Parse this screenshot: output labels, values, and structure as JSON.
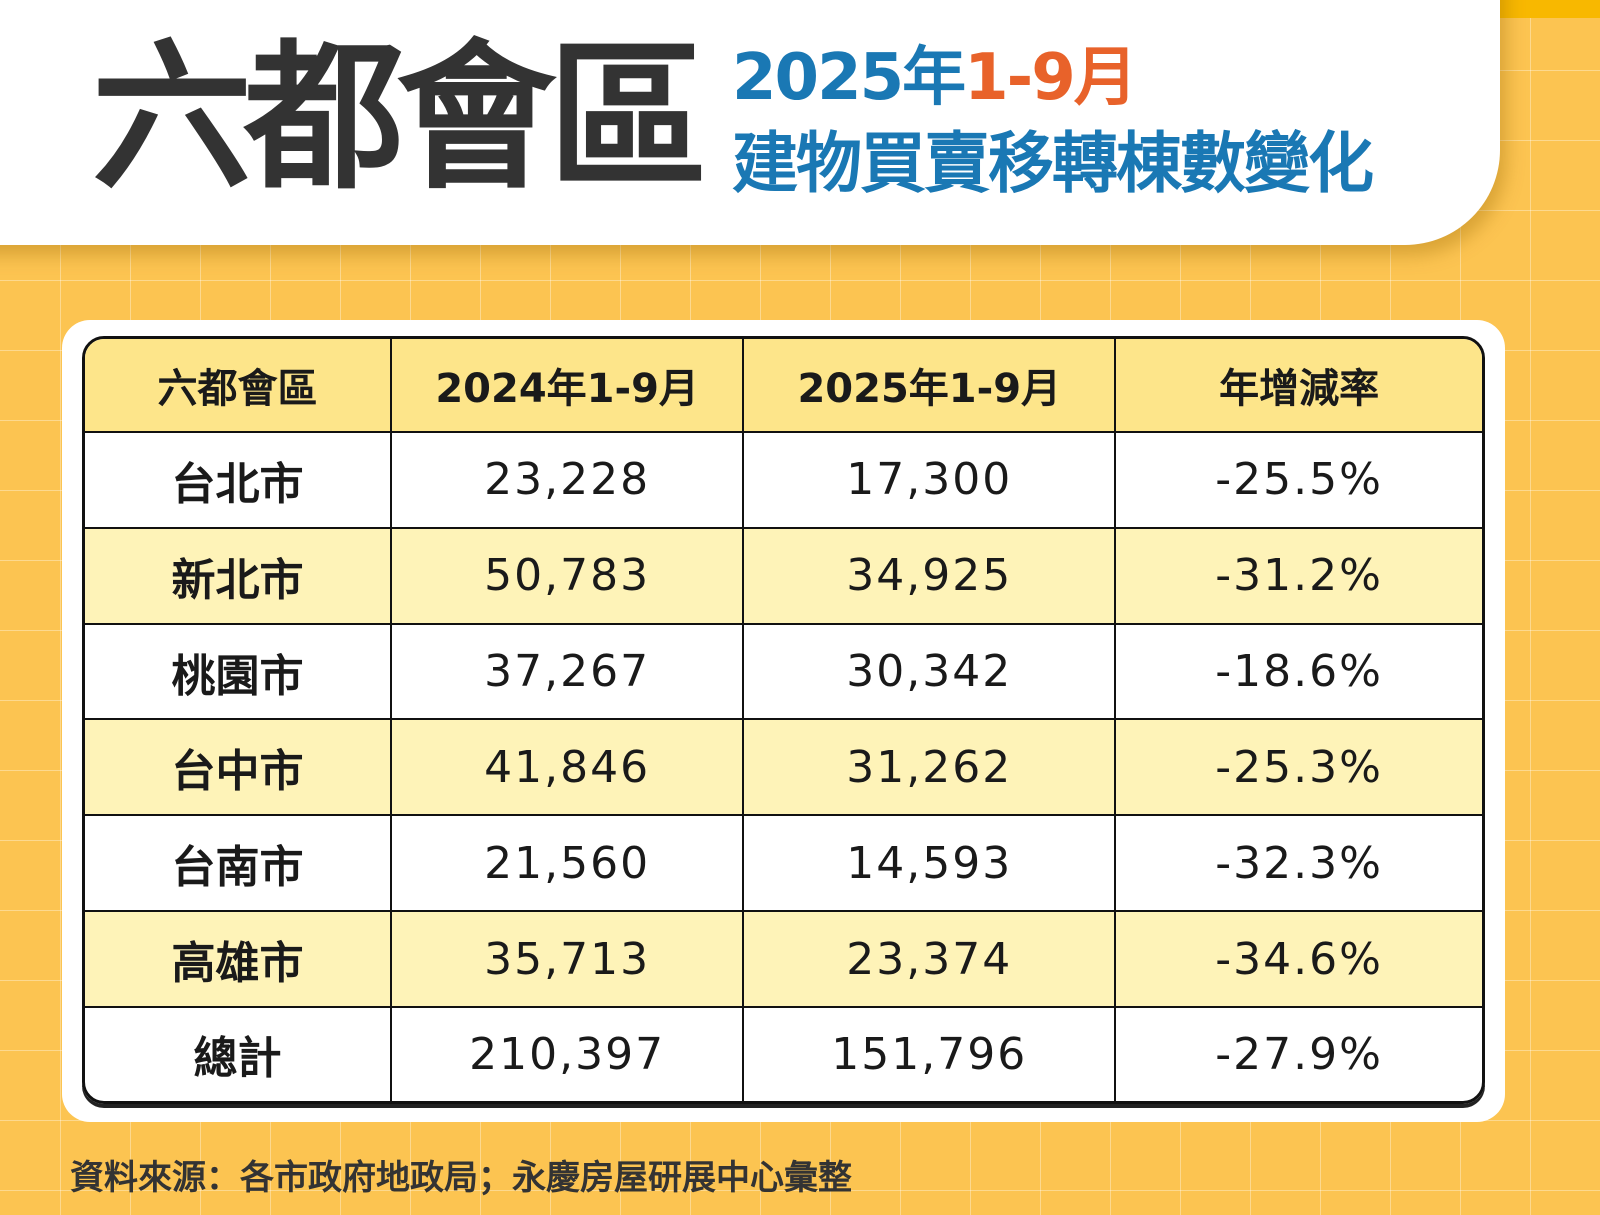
{
  "header": {
    "title": "六都會區",
    "subtitle_year": "2025年",
    "subtitle_period": "1-9月",
    "subtitle_line2": "建物買賣移轉棟數變化"
  },
  "colors": {
    "accent_blue": "#1a78b4",
    "accent_orange": "#e8622a",
    "background": "#fcc451",
    "header_row": "#fde58a",
    "alt_row": "#fef3b8"
  },
  "chart_data": {
    "type": "table",
    "title": "六都會區 2025年1-9月 建物買賣移轉棟數變化",
    "columns": [
      "六都會區",
      "2024年1-9月",
      "2025年1-9月",
      "年增減率"
    ],
    "rows": [
      [
        "台北市",
        "23,228",
        "17,300",
        "-25.5%"
      ],
      [
        "新北市",
        "50,783",
        "34,925",
        "-31.2%"
      ],
      [
        "桃園市",
        "37,267",
        "30,342",
        "-18.6%"
      ],
      [
        "台中市",
        "41,846",
        "31,262",
        "-25.3%"
      ],
      [
        "台南市",
        "21,560",
        "14,593",
        "-32.3%"
      ],
      [
        "高雄市",
        "35,713",
        "23,374",
        "-34.6%"
      ],
      [
        "總計",
        "210,397",
        "151,796",
        "-27.9%"
      ]
    ]
  },
  "footer": {
    "source": "資料來源：各市政府地政局；永慶房屋研展中心彙整"
  }
}
